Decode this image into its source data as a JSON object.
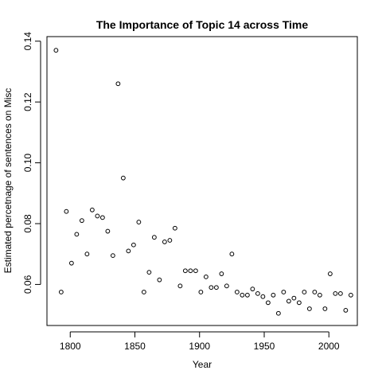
{
  "chart_data": {
    "type": "scatter",
    "title": "The Importance of Topic 14 across Time",
    "xlabel": "Year",
    "ylabel": "Estimated percetnage of sentences on Misc",
    "xlim": [
      1782,
      2022
    ],
    "ylim": [
      0.0465,
      0.1415
    ],
    "xticks": [
      1800,
      1850,
      1900,
      1950,
      2000
    ],
    "xtick_labels": [
      "1800",
      "1850",
      "1900",
      "1950",
      "2000"
    ],
    "yticks": [
      0.06,
      0.08,
      0.1,
      0.12,
      0.14
    ],
    "ytick_labels": [
      "0.06",
      "0.08",
      "0.10",
      "0.12",
      "0.14"
    ],
    "grid": false,
    "legend": "none",
    "marker": "open-circle",
    "series": [
      {
        "x": [
          1789,
          1793,
          1797,
          1801,
          1805,
          1809,
          1813,
          1817,
          1821,
          1825,
          1829,
          1833,
          1837,
          1841,
          1845,
          1849,
          1853,
          1857,
          1861,
          1865,
          1869,
          1873,
          1877,
          1881,
          1885,
          1889,
          1893,
          1897,
          1901,
          1905,
          1909,
          1913,
          1917,
          1921,
          1925,
          1929,
          1933,
          1937,
          1941,
          1945,
          1949,
          1953,
          1957,
          1961,
          1965,
          1969,
          1973,
          1977,
          1981,
          1985,
          1989,
          1993,
          1997,
          2001,
          2005,
          2009,
          2013,
          2017
        ],
        "y": [
          0.137,
          0.0575,
          0.084,
          0.067,
          0.0765,
          0.081,
          0.07,
          0.0845,
          0.0825,
          0.082,
          0.0775,
          0.0695,
          0.126,
          0.095,
          0.071,
          0.073,
          0.0805,
          0.0575,
          0.064,
          0.0755,
          0.0615,
          0.074,
          0.0745,
          0.0785,
          0.0595,
          0.0645,
          0.0645,
          0.0645,
          0.0575,
          0.0625,
          0.059,
          0.059,
          0.0635,
          0.0595,
          0.07,
          0.0575,
          0.0565,
          0.0565,
          0.0585,
          0.057,
          0.056,
          0.054,
          0.0565,
          0.0505,
          0.0575,
          0.0545,
          0.0555,
          0.054,
          0.0575,
          0.052,
          0.0575,
          0.0565,
          0.052,
          0.0635,
          0.057,
          0.057,
          0.0515,
          0.0565
        ]
      }
    ]
  }
}
